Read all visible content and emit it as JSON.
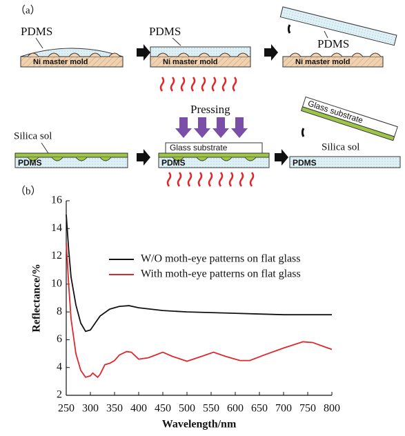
{
  "diagram": {
    "panel_a": "（a）",
    "row1": {
      "pdms_1": "PDMS",
      "mold_1": "Ni master mold",
      "pdms_2": "PDMS",
      "mold_2": "Ni master mold",
      "pdms_3": "PDMS",
      "mold_3": "Ni master mold"
    },
    "row2": {
      "sol_1": "Silica sol",
      "pdms_1": "PDMS",
      "pressing": "Pressing",
      "glass_2": "Glass substrate",
      "pdms_2": "PDMS",
      "glass_3": "Glass substrate",
      "sol_3": "Silica sol",
      "pdms_3": "PDMS"
    },
    "panel_b": "（b）"
  },
  "chart_data": {
    "type": "line",
    "x_label": "Wavelength/nm",
    "y_label": "Reflectance/%",
    "xlim": [
      250,
      800
    ],
    "xticks": [
      250,
      300,
      350,
      400,
      450,
      500,
      550,
      600,
      650,
      700,
      750,
      800
    ],
    "ylim": [
      2,
      16
    ],
    "yticks": [
      2,
      4,
      6,
      8,
      10,
      12,
      14,
      16
    ],
    "series": [
      {
        "name": "W/O moth-eye patterns on flat glass",
        "color": "#111111",
        "x": [
          250,
          255,
          260,
          270,
          280,
          290,
          300,
          310,
          320,
          340,
          360,
          380,
          400,
          450,
          500,
          550,
          600,
          650,
          700,
          750,
          800
        ],
        "values": [
          15,
          12.5,
          10.5,
          8.5,
          7.2,
          6.6,
          6.7,
          7.2,
          7.7,
          8.2,
          8.4,
          8.45,
          8.3,
          8.1,
          8.0,
          7.95,
          7.9,
          7.85,
          7.8,
          7.8,
          7.8
        ]
      },
      {
        "name": "With moth-eye patterns on flat glass",
        "color": "#e0262b",
        "x": [
          250,
          255,
          260,
          270,
          280,
          290,
          300,
          305,
          315,
          320,
          330,
          340,
          350,
          360,
          375,
          385,
          400,
          410,
          420,
          450,
          470,
          500,
          530,
          555,
          580,
          610,
          630,
          660,
          700,
          740,
          760,
          780,
          800
        ],
        "values": [
          13,
          10,
          7.5,
          5,
          3.8,
          3.3,
          3.4,
          3.6,
          3.3,
          3.5,
          4.2,
          4.3,
          4.5,
          4.9,
          5.15,
          5.1,
          4.6,
          4.65,
          4.7,
          5.1,
          4.8,
          4.45,
          4.8,
          5.1,
          4.8,
          4.5,
          4.5,
          4.9,
          5.4,
          5.85,
          5.8,
          5.55,
          5.3
        ]
      }
    ]
  }
}
